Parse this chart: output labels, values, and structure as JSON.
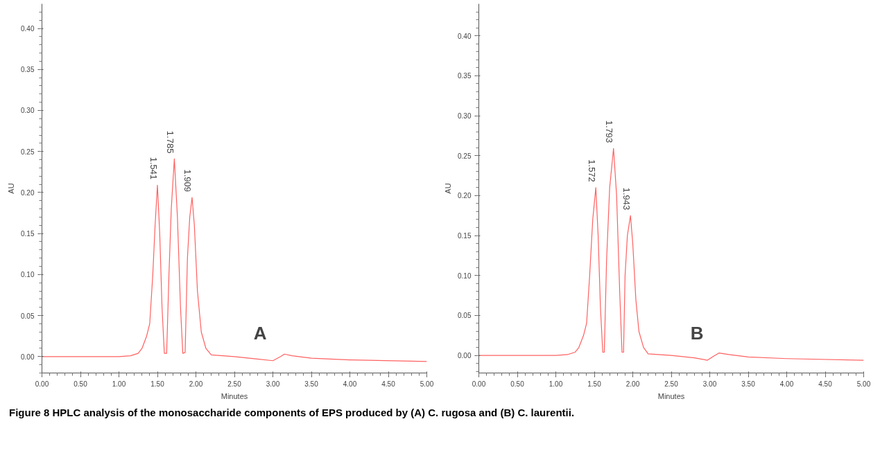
{
  "chart_data": [
    {
      "type": "line",
      "xlabel": "Minutes",
      "ylabel": "AU",
      "xlim": [
        0,
        5
      ],
      "ylim": [
        -0.02,
        0.43
      ],
      "grid": false,
      "xticks": [
        {
          "value": 0,
          "label": "0.00"
        },
        {
          "value": 0.5,
          "label": "0.50"
        },
        {
          "value": 1,
          "label": "1.00"
        },
        {
          "value": 1.5,
          "label": "1.50"
        },
        {
          "value": 2,
          "label": "2.00"
        },
        {
          "value": 2.5,
          "label": "2.50"
        },
        {
          "value": 3,
          "label": "3.00"
        },
        {
          "value": 3.5,
          "label": "3.50"
        },
        {
          "value": 4,
          "label": "4.00"
        },
        {
          "value": 4.5,
          "label": "4.50"
        },
        {
          "value": 5,
          "label": "5.00"
        }
      ],
      "yticks": [
        {
          "value": 0,
          "label": "0.00"
        },
        {
          "value": 0.05,
          "label": "0.05"
        },
        {
          "value": 0.1,
          "label": "0.10"
        },
        {
          "value": 0.15,
          "label": "0.15"
        },
        {
          "value": 0.2,
          "label": "0.20"
        },
        {
          "value": 0.25,
          "label": "0.25"
        },
        {
          "value": 0.3,
          "label": "0.30"
        },
        {
          "value": 0.35,
          "label": "0.35"
        },
        {
          "value": 0.4,
          "label": "0.40"
        }
      ],
      "series": [
        {
          "color": "#ff6060",
          "x": [
            0,
            1.0,
            1.15,
            1.25,
            1.3,
            1.36,
            1.4,
            1.44,
            1.47,
            1.5,
            1.53,
            1.56,
            1.59,
            1.62,
            1.65,
            1.68,
            1.72,
            1.76,
            1.8,
            1.83,
            1.86,
            1.89,
            1.92,
            1.95,
            1.98,
            2.02,
            2.07,
            2.13,
            2.2,
            2.5,
            2.8,
            3.0,
            3.1,
            3.15,
            3.25,
            3.5,
            4.0,
            5.0
          ],
          "values": [
            0,
            0,
            0.001,
            0.004,
            0.01,
            0.025,
            0.04,
            0.1,
            0.16,
            0.209,
            0.15,
            0.06,
            0.004,
            0.004,
            0.1,
            0.18,
            0.241,
            0.17,
            0.06,
            0.004,
            0.005,
            0.12,
            0.17,
            0.194,
            0.16,
            0.08,
            0.03,
            0.01,
            0.002,
            0,
            -0.003,
            -0.005,
            0,
            0.003,
            0.001,
            -0.002,
            -0.004,
            -0.006
          ]
        }
      ],
      "annotations": [
        {
          "text": "1.541",
          "x": 1.5,
          "y": 0.209
        },
        {
          "text": "1.785",
          "x": 1.72,
          "y": 0.241
        },
        {
          "text": "1.909",
          "x": 1.95,
          "y": 0.194
        },
        "A"
      ]
    },
    {
      "type": "line",
      "xlabel": "Minutes",
      "ylabel": "AU",
      "xlim": [
        0,
        5
      ],
      "ylim": [
        -0.022,
        0.44
      ],
      "grid": false,
      "xticks": [
        {
          "value": 0,
          "label": "0.00"
        },
        {
          "value": 0.5,
          "label": "0.50"
        },
        {
          "value": 1,
          "label": "1.00"
        },
        {
          "value": 1.5,
          "label": "1.50"
        },
        {
          "value": 2,
          "label": "2.00"
        },
        {
          "value": 2.5,
          "label": "2.50"
        },
        {
          "value": 3,
          "label": "3.00"
        },
        {
          "value": 3.5,
          "label": "3.50"
        },
        {
          "value": 4,
          "label": "4.00"
        },
        {
          "value": 4.5,
          "label": "4.50"
        },
        {
          "value": 5,
          "label": "5.00"
        }
      ],
      "yticks": [
        {
          "value": 0,
          "label": "0.00"
        },
        {
          "value": 0.05,
          "label": "0.05"
        },
        {
          "value": 0.1,
          "label": "0.10"
        },
        {
          "value": 0.15,
          "label": "0.15"
        },
        {
          "value": 0.2,
          "label": "0.20"
        },
        {
          "value": 0.25,
          "label": "0.25"
        },
        {
          "value": 0.3,
          "label": "0.30"
        },
        {
          "value": 0.35,
          "label": "0.35"
        },
        {
          "value": 0.4,
          "label": "0.40"
        }
      ],
      "series": [
        {
          "color": "#ff6060",
          "x": [
            0,
            1.0,
            1.15,
            1.25,
            1.3,
            1.36,
            1.4,
            1.44,
            1.48,
            1.52,
            1.55,
            1.58,
            1.61,
            1.63,
            1.66,
            1.7,
            1.75,
            1.79,
            1.83,
            1.86,
            1.88,
            1.9,
            1.93,
            1.97,
            2.0,
            2.04,
            2.08,
            2.14,
            2.2,
            2.5,
            2.8,
            2.97,
            3.05,
            3.12,
            3.25,
            3.5,
            4.0,
            5.0
          ],
          "values": [
            0,
            0,
            0.001,
            0.004,
            0.01,
            0.025,
            0.04,
            0.1,
            0.17,
            0.21,
            0.15,
            0.06,
            0.004,
            0.004,
            0.12,
            0.21,
            0.259,
            0.2,
            0.08,
            0.004,
            0.004,
            0.1,
            0.15,
            0.175,
            0.14,
            0.07,
            0.03,
            0.01,
            0.002,
            0,
            -0.003,
            -0.006,
            -0.001,
            0.003,
            0.001,
            -0.002,
            -0.004,
            -0.006
          ]
        }
      ],
      "annotations": [
        {
          "text": "1.572",
          "x": 1.52,
          "y": 0.21
        },
        {
          "text": "1.793",
          "x": 1.75,
          "y": 0.259
        },
        {
          "text": "1.943",
          "x": 1.97,
          "y": 0.175
        },
        "B",
        "Figure 8 HPLC analysis of the monosaccharide components of EPS produced by (A) C. rugosa and (B) C. laurentii."
      ]
    }
  ]
}
